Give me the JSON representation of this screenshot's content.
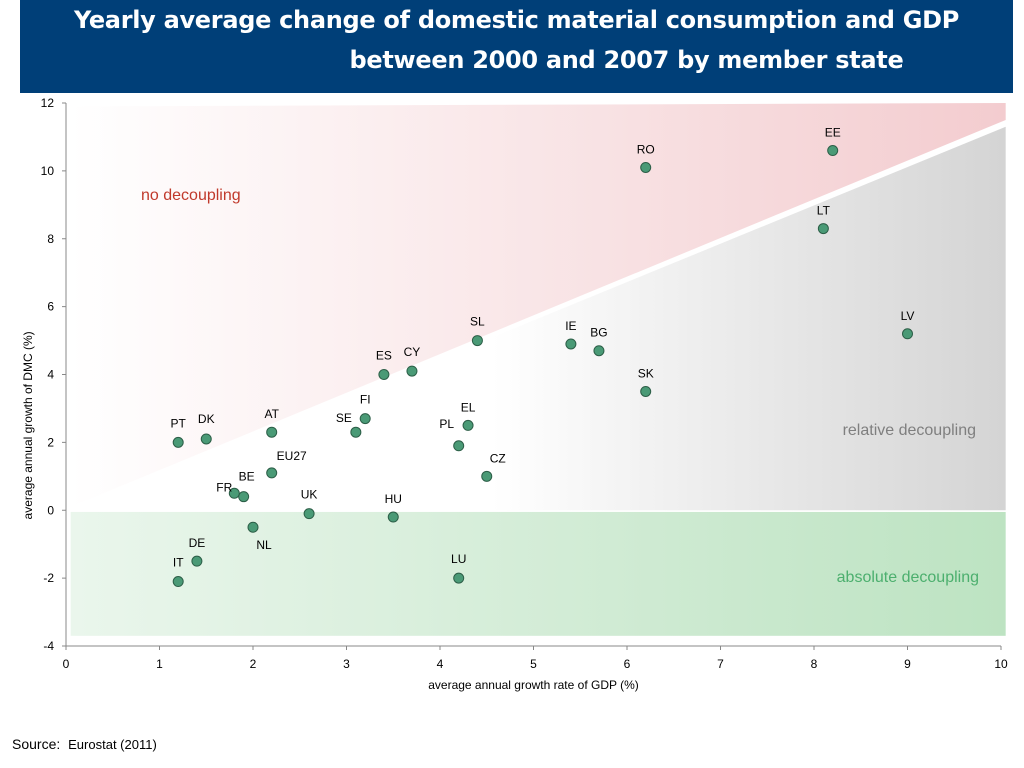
{
  "title": {
    "line1": "Yearly average change of domestic material consumption and GDP",
    "line2": "between 2000 and 2007 by member state"
  },
  "source": {
    "label": "Source:",
    "value": "Eurostat (2011)"
  },
  "colors": {
    "title_bg": "#003f78",
    "no_decoupling": "#c0392b",
    "relative_decoupling": "#7f7f7f",
    "absolute_decoupling": "#4caf6e",
    "point_fill": "#4a9a76",
    "point_stroke": "#2c5e47"
  },
  "chart_data": {
    "type": "scatter",
    "xlabel": "average annual growth rate of GDP (%)",
    "ylabel": "average annual growth of DMC (%)",
    "xlim": [
      0,
      10
    ],
    "ylim": [
      -4,
      12
    ],
    "xticks": [
      0,
      1,
      2,
      3,
      4,
      5,
      6,
      7,
      8,
      9,
      10
    ],
    "yticks": [
      -4,
      -2,
      0,
      2,
      4,
      6,
      8,
      10,
      12
    ],
    "grid": false,
    "regions": [
      {
        "label": "no decoupling"
      },
      {
        "label": "relative decoupling"
      },
      {
        "label": "absolute decoupling"
      }
    ],
    "points": [
      {
        "label": "EE",
        "x": 8.2,
        "y": 10.6
      },
      {
        "label": "RO",
        "x": 6.2,
        "y": 10.1
      },
      {
        "label": "LT",
        "x": 8.1,
        "y": 8.3
      },
      {
        "label": "LV",
        "x": 9.0,
        "y": 5.2
      },
      {
        "label": "SL",
        "x": 4.4,
        "y": 5.0
      },
      {
        "label": "IE",
        "x": 5.4,
        "y": 4.9
      },
      {
        "label": "BG",
        "x": 5.7,
        "y": 4.7
      },
      {
        "label": "SK",
        "x": 6.2,
        "y": 3.5
      },
      {
        "label": "ES",
        "x": 3.4,
        "y": 4.0
      },
      {
        "label": "CY",
        "x": 3.7,
        "y": 4.1
      },
      {
        "label": "FI",
        "x": 3.2,
        "y": 2.7
      },
      {
        "label": "SE",
        "x": 3.1,
        "y": 2.3
      },
      {
        "label": "EL",
        "x": 4.3,
        "y": 2.5
      },
      {
        "label": "PL",
        "x": 4.2,
        "y": 1.9
      },
      {
        "label": "CZ",
        "x": 4.5,
        "y": 1.0
      },
      {
        "label": "AT",
        "x": 2.2,
        "y": 2.3
      },
      {
        "label": "PT",
        "x": 1.2,
        "y": 2.0
      },
      {
        "label": "DK",
        "x": 1.5,
        "y": 2.1
      },
      {
        "label": "EU27",
        "x": 2.2,
        "y": 1.1
      },
      {
        "label": "BE",
        "x": 1.9,
        "y": 0.4
      },
      {
        "label": "FR",
        "x": 1.8,
        "y": 0.5
      },
      {
        "label": "UK",
        "x": 2.6,
        "y": -0.1
      },
      {
        "label": "HU",
        "x": 3.5,
        "y": -0.2
      },
      {
        "label": "NL",
        "x": 2.0,
        "y": -0.5
      },
      {
        "label": "DE",
        "x": 1.4,
        "y": -1.5
      },
      {
        "label": "IT",
        "x": 1.2,
        "y": -2.1
      },
      {
        "label": "LU",
        "x": 4.2,
        "y": -2.0
      }
    ]
  }
}
